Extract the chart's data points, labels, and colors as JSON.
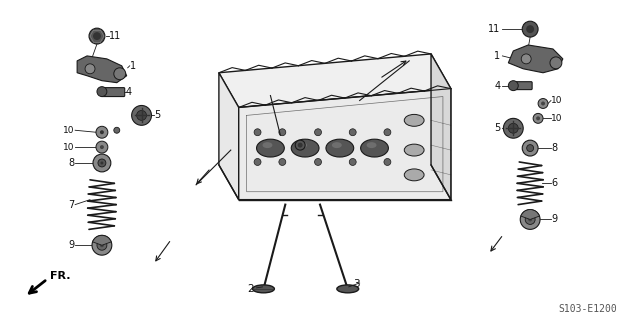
{
  "bg_color": "#ffffff",
  "line_color": "#1a1a1a",
  "dark_color": "#2a2a2a",
  "gray_color": "#666666",
  "diagram_code": "S103-E1200",
  "fig_width": 6.4,
  "fig_height": 3.19,
  "dpi": 100
}
